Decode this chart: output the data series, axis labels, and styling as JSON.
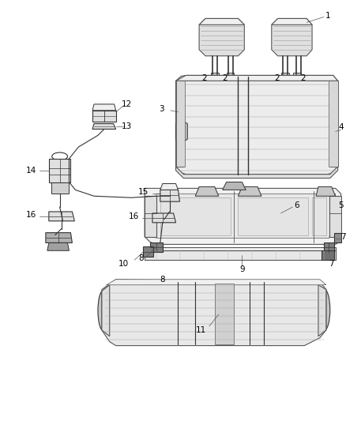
{
  "background_color": "#ffffff",
  "line_color": "#555555",
  "dark_line": "#333333",
  "fill_light": "#f0f0f0",
  "fill_mid": "#e0e0e0",
  "fill_dark": "#c8c8c8",
  "label_fontsize": 7.5,
  "fig_width": 4.38,
  "fig_height": 5.33,
  "dpi": 100
}
